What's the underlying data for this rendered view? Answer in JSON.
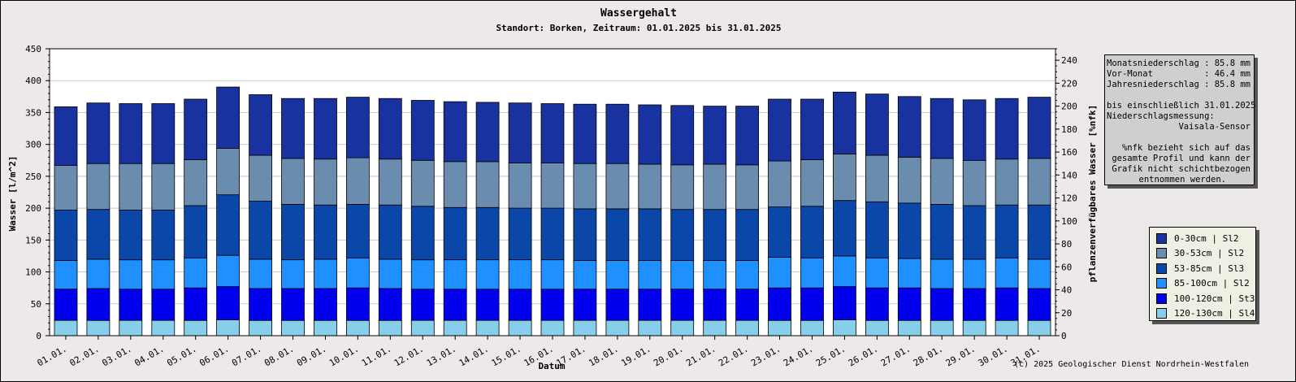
{
  "title": "Wassergehalt",
  "subtitle": "Standort: Borken, Zeitraum: 01.01.2025 bis 31.01.2025",
  "copyright": "(c) 2025 Geologischer Dienst Nordrhein-Westfalen",
  "info": {
    "line1_label": "Monatsniederschlag :",
    "line1_value": "85.8 mm",
    "line2_label": "Vor-Monat          :",
    "line2_value": "46.4 mm",
    "line3_label": "Jahresniederschlag :",
    "line3_value": "85.8 mm",
    "line4": "bis einschließlich 31.01.2025",
    "line5": "Niederschlagsmessung:",
    "line6": "Vaisala-Sensor",
    "line7": "%nfk bezieht sich auf das",
    "line8": "gesamte Profil und kann der",
    "line9": "Grafik nicht schichtbezogen",
    "line10": "entnommen werden."
  },
  "chart_data": {
    "type": "bar",
    "stacked": true,
    "title": "Wassergehalt",
    "subtitle": "Standort: Borken, Zeitraum: 01.01.2025 bis 31.01.2025",
    "xlabel": "Datum",
    "ylabel": "Wasser [l/m^2]",
    "y2label": "pflanzenverfügbares Wasser [%nfk]",
    "ylim": [
      0,
      450
    ],
    "y2lim": [
      0,
      250
    ],
    "yticks": [
      0,
      50,
      100,
      150,
      200,
      250,
      300,
      350,
      400,
      450
    ],
    "y2ticks": [
      0,
      20,
      40,
      60,
      80,
      100,
      120,
      140,
      160,
      180,
      200,
      220,
      240
    ],
    "grid": true,
    "legend_position": "right",
    "categories": [
      "01.01.",
      "02.01.",
      "03.01.",
      "04.01.",
      "05.01.",
      "06.01.",
      "07.01.",
      "08.01.",
      "09.01.",
      "10.01.",
      "11.01.",
      "12.01.",
      "13.01.",
      "14.01.",
      "15.01.",
      "16.01.",
      "17.01.",
      "18.01.",
      "19.01.",
      "20.01.",
      "21.01.",
      "22.01.",
      "23.01.",
      "24.01.",
      "25.01.",
      "26.01.",
      "27.01.",
      "28.01.",
      "29.01.",
      "30.01.",
      "31.01."
    ],
    "series": [
      {
        "name": "120-130cm | Sl4",
        "color": "#87ceeb",
        "values": [
          24,
          24,
          24,
          24,
          24,
          25,
          24,
          24,
          24,
          24,
          24,
          24,
          24,
          24,
          24,
          24,
          24,
          24,
          24,
          24,
          24,
          24,
          24,
          24,
          25,
          24,
          24,
          24,
          24,
          24,
          24
        ]
      },
      {
        "name": "100-120cm | St3",
        "color": "#0000ee",
        "values": [
          49,
          50,
          49,
          49,
          51,
          52,
          50,
          50,
          50,
          51,
          50,
          49,
          49,
          49,
          49,
          49,
          49,
          49,
          49,
          49,
          49,
          49,
          51,
          51,
          52,
          51,
          51,
          50,
          50,
          51,
          50
        ]
      },
      {
        "name": "85-100cm | Sl2",
        "color": "#1e90ff",
        "values": [
          45,
          46,
          46,
          46,
          47,
          49,
          46,
          45,
          46,
          47,
          46,
          46,
          46,
          46,
          46,
          46,
          45,
          45,
          45,
          45,
          45,
          45,
          48,
          47,
          48,
          47,
          46,
          46,
          46,
          47,
          46
        ]
      },
      {
        "name": "53-85cm | Sl3",
        "color": "#0a47a8",
        "values": [
          79,
          78,
          78,
          78,
          82,
          95,
          91,
          87,
          85,
          84,
          85,
          84,
          82,
          82,
          81,
          81,
          81,
          81,
          81,
          80,
          80,
          80,
          79,
          81,
          87,
          88,
          87,
          86,
          84,
          83,
          85
        ]
      },
      {
        "name": "30-53cm | Sl2",
        "color": "#6a8caf",
        "values": [
          70,
          72,
          73,
          73,
          72,
          73,
          72,
          72,
          72,
          73,
          72,
          72,
          72,
          72,
          71,
          71,
          71,
          71,
          70,
          70,
          71,
          70,
          72,
          73,
          73,
          73,
          72,
          72,
          71,
          72,
          73
        ]
      },
      {
        "name": "0-30cm | Sl2",
        "color": "#1832a0",
        "values": [
          92,
          95,
          94,
          94,
          95,
          96,
          95,
          94,
          95,
          95,
          95,
          94,
          94,
          93,
          94,
          93,
          93,
          93,
          93,
          93,
          91,
          92,
          97,
          95,
          97,
          96,
          95,
          94,
          95,
          95,
          96
        ]
      }
    ]
  },
  "legend_order": [
    5,
    4,
    3,
    2,
    1,
    0
  ]
}
